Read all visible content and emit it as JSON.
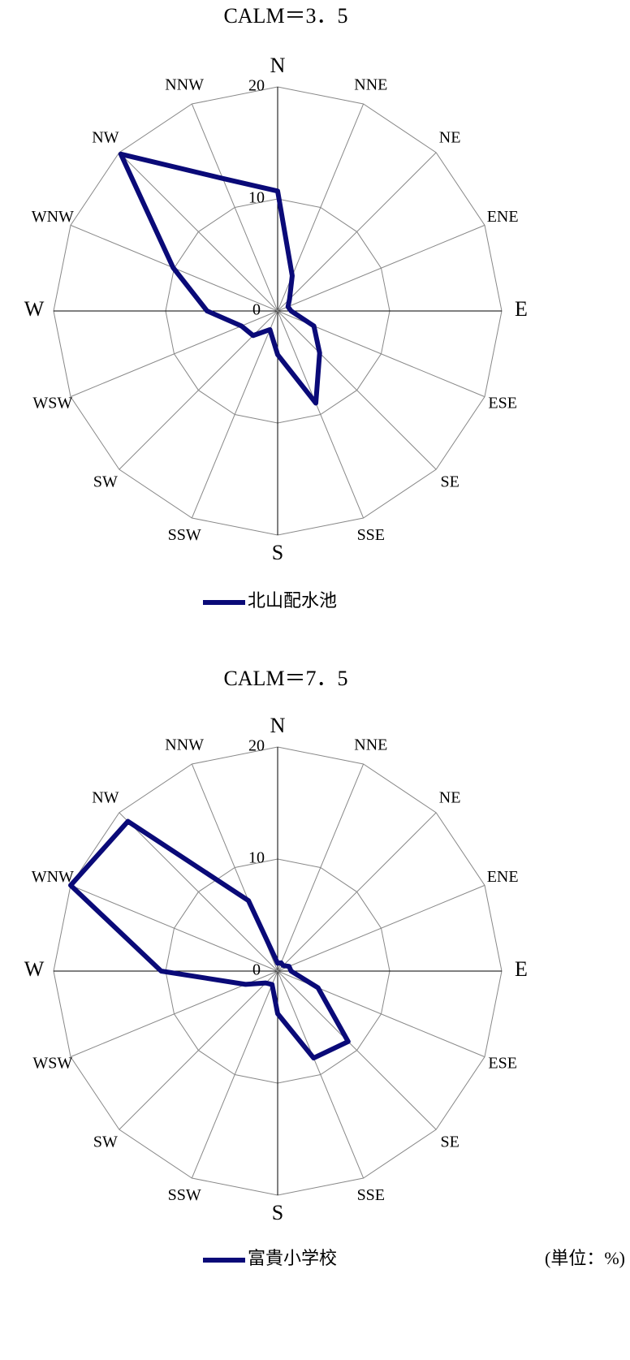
{
  "chart_data": [
    {
      "type": "radar",
      "title": "CALM＝3．5",
      "categories": [
        "N",
        "NNE",
        "NE",
        "ENE",
        "E",
        "ESE",
        "SE",
        "SSE",
        "S",
        "SSW",
        "SW",
        "WSW",
        "W",
        "WNW",
        "NW",
        "NNW"
      ],
      "series": [
        {
          "name": "北山配水池",
          "color": "#0a0a78",
          "values": [
            10.7,
            3.4,
            1.5,
            1.0,
            1.2,
            3.5,
            5.3,
            8.9,
            3.9,
            1.8,
            3.1,
            3.5,
            6.3,
            10.1,
            19.8,
            12.8
          ]
        }
      ],
      "rlim": [
        0,
        20
      ],
      "rticks": [
        0,
        10,
        20
      ],
      "grid": true
    },
    {
      "type": "radar",
      "title": "CALM＝7．5",
      "categories": [
        "N",
        "NNE",
        "NE",
        "ENE",
        "E",
        "ESE",
        "SE",
        "SSE",
        "S",
        "SSW",
        "SW",
        "WSW",
        "W",
        "WNW",
        "NW",
        "NNW"
      ],
      "series": [
        {
          "name": "富貴小学校",
          "color": "#0a0a78",
          "values": [
            0.7,
            0.8,
            0.7,
            1.1,
            1.2,
            3.9,
            8.9,
            8.4,
            3.8,
            1.3,
            1.5,
            3.1,
            10.4,
            20.0,
            18.9,
            6.8
          ]
        }
      ],
      "rlim": [
        0,
        20
      ],
      "rticks": [
        0,
        10,
        20
      ],
      "grid": true
    }
  ],
  "unit_note": "(単位：%)"
}
